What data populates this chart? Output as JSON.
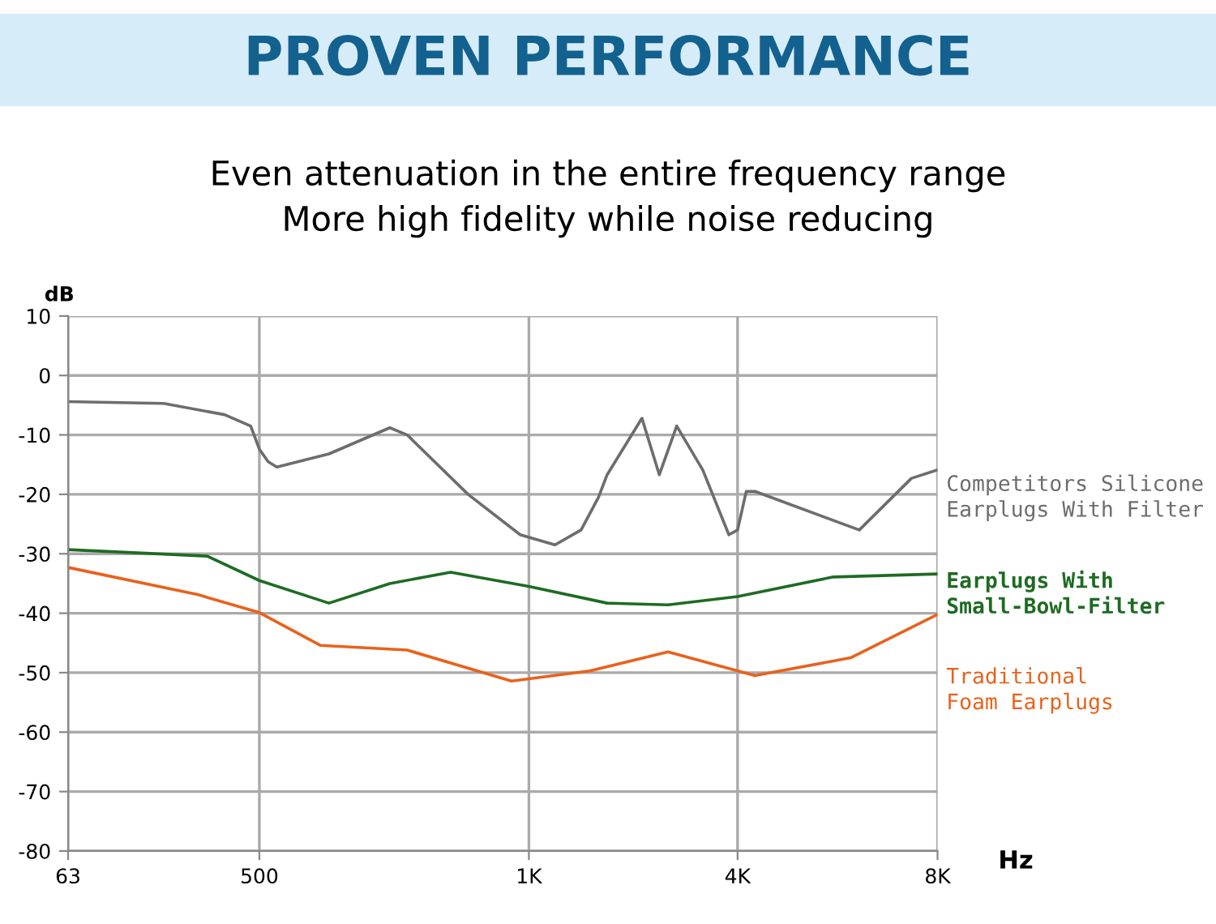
{
  "chart_data": {
    "type": "line",
    "title": "PROVEN PERFORMANCE",
    "subtitle": "Even attenuation in the entire frequency range\nMore high fidelity while noise reducing",
    "xlabel": "Hz",
    "ylabel": "dB",
    "categories": [
      "63",
      null,
      null,
      null,
      null,
      null,
      null,
      null,
      null,
      null,
      null,
      null,
      null,
      null,
      null,
      null,
      null,
      null,
      null,
      null,
      null,
      null,
      "500",
      null,
      null,
      null,
      null,
      null,
      null,
      null,
      null,
      null,
      null,
      null,
      null,
      null,
      null,
      null,
      null,
      null,
      null,
      null,
      null,
      null,
      null,
      null,
      null,
      null,
      null,
      null,
      null,
      null,
      null,
      "1K",
      null,
      null,
      null,
      null,
      null,
      null,
      null,
      null,
      null,
      null,
      null,
      null,
      null,
      null,
      null,
      null,
      null,
      null,
      null,
      null,
      null,
      null,
      null,
      "4K",
      null,
      null,
      null,
      null,
      null,
      null,
      null,
      null,
      null,
      null,
      null,
      null,
      null,
      null,
      null,
      null,
      null,
      null,
      null,
      null,
      null,
      null,
      "8K"
    ],
    "ylim": [
      -80,
      10
    ],
    "yticks": [
      -80,
      -70,
      -60,
      -50,
      -40,
      -30,
      -20,
      -10,
      0,
      10
    ],
    "grid": true,
    "legend": "right",
    "line_style": "solid",
    "marker": "none",
    "series": [
      {
        "name": "Competitors Silicone\nEarplugs With Filter",
        "color": "#6d6d6d",
        "values": [
          -4.4,
          null,
          null,
          null,
          null,
          null,
          null,
          null,
          null,
          null,
          null,
          -4.7,
          null,
          null,
          null,
          null,
          null,
          null,
          -6.6,
          null,
          null,
          -8.5,
          -12.4,
          -14.5,
          -15.4,
          null,
          null,
          null,
          null,
          null,
          -13.2,
          null,
          null,
          null,
          null,
          null,
          null,
          -8.8,
          null,
          -10,
          null,
          null,
          null,
          null,
          null,
          null,
          -20,
          null,
          null,
          null,
          null,
          null,
          -26.8,
          null,
          null,
          null,
          -28.5,
          null,
          null,
          -26,
          null,
          -20.5,
          -16.7,
          null,
          null,
          null,
          -7.2,
          null,
          -16.7,
          null,
          -8.5,
          null,
          null,
          -15.9,
          null,
          null,
          -26.8,
          -26,
          -19.5,
          -19.5,
          null,
          null,
          null,
          null,
          null,
          null,
          null,
          null,
          null,
          null,
          null,
          -26,
          null,
          null,
          null,
          null,
          null,
          -17.3,
          null,
          null,
          -15.9
        ]
      },
      {
        "name": "Earplugs With\nSmall-Bowl-Filter",
        "color": "#1e6b23",
        "values": [
          -29.3,
          null,
          null,
          null,
          null,
          null,
          null,
          null,
          null,
          null,
          null,
          null,
          null,
          null,
          null,
          null,
          -30.4,
          null,
          null,
          null,
          null,
          null,
          -34.5,
          null,
          null,
          null,
          null,
          null,
          null,
          null,
          -38.3,
          null,
          null,
          null,
          null,
          null,
          null,
          -35,
          null,
          null,
          null,
          null,
          null,
          null,
          -33.1,
          null,
          null,
          null,
          null,
          null,
          null,
          null,
          null,
          -35.5,
          null,
          null,
          null,
          null,
          null,
          null,
          null,
          null,
          -38.3,
          null,
          null,
          null,
          null,
          null,
          null,
          -38.6,
          null,
          null,
          null,
          null,
          null,
          null,
          null,
          -37.2,
          null,
          null,
          null,
          null,
          null,
          null,
          null,
          null,
          null,
          null,
          -33.9,
          null,
          null,
          null,
          null,
          null,
          null,
          null,
          null,
          null,
          null,
          null,
          -33.4
        ]
      },
      {
        "name": "Traditional\nFoam Earplugs",
        "color": "#e8621c",
        "values": [
          -32.3,
          null,
          null,
          null,
          null,
          null,
          null,
          null,
          null,
          null,
          null,
          null,
          null,
          null,
          null,
          -36.9,
          null,
          null,
          null,
          null,
          null,
          null,
          -39.9,
          null,
          null,
          null,
          null,
          null,
          null,
          -45.4,
          null,
          null,
          null,
          null,
          null,
          null,
          null,
          null,
          null,
          -46.2,
          null,
          null,
          null,
          null,
          null,
          null,
          null,
          null,
          null,
          null,
          null,
          -51.4,
          null,
          null,
          null,
          null,
          null,
          null,
          null,
          null,
          -49.7,
          null,
          null,
          null,
          null,
          null,
          null,
          null,
          null,
          -46.5,
          null,
          null,
          null,
          null,
          null,
          null,
          null,
          null,
          null,
          -50.5,
          null,
          null,
          null,
          null,
          null,
          null,
          null,
          null,
          null,
          null,
          -47.5,
          null,
          null,
          null,
          null,
          null,
          null,
          null,
          null,
          null,
          -40.2
        ]
      }
    ]
  }
}
